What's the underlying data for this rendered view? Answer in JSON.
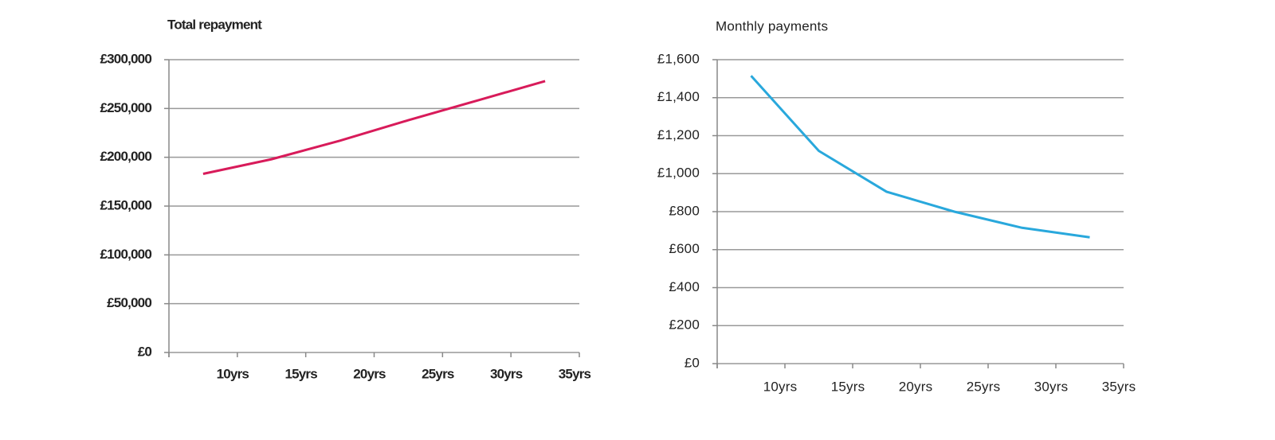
{
  "chart_data": [
    {
      "type": "line",
      "title": "Total repayment",
      "categories": [
        "10yrs",
        "15yrs",
        "20yrs",
        "25yrs",
        "30yrs",
        "35yrs"
      ],
      "series": [
        {
          "color": "#d81b5a",
          "values": [
            183000,
            198000,
            217000,
            238000,
            258000,
            278000
          ]
        }
      ],
      "ylim": [
        0,
        300000
      ],
      "yticks": [
        {
          "value": 0,
          "label": "£0"
        },
        {
          "value": 50000,
          "label": "£50,000"
        },
        {
          "value": 100000,
          "label": "£100,000"
        },
        {
          "value": 150000,
          "label": "£150,000"
        },
        {
          "value": 200000,
          "label": "£200,000"
        },
        {
          "value": 250000,
          "label": "£250,000"
        },
        {
          "value": 300000,
          "label": "£300,000"
        }
      ],
      "grid": true
    },
    {
      "type": "line",
      "title": "Monthly payments",
      "categories": [
        "10yrs",
        "15yrs",
        "20yrs",
        "25yrs",
        "30yrs",
        "35yrs"
      ],
      "series": [
        {
          "color": "#29a8dc",
          "values": [
            1515,
            1120,
            905,
            800,
            715,
            665
          ]
        }
      ],
      "ylim": [
        0,
        1600
      ],
      "yticks": [
        {
          "value": 0,
          "label": "£0"
        },
        {
          "value": 200,
          "label": "£200"
        },
        {
          "value": 400,
          "label": "£400"
        },
        {
          "value": 600,
          "label": "£600"
        },
        {
          "value": 800,
          "label": "£800"
        },
        {
          "value": 1000,
          "label": "£1,000"
        },
        {
          "value": 1200,
          "label": "£1,200"
        },
        {
          "value": 1400,
          "label": "£1,400"
        },
        {
          "value": 1600,
          "label": "£1,600"
        }
      ],
      "grid": true
    }
  ]
}
